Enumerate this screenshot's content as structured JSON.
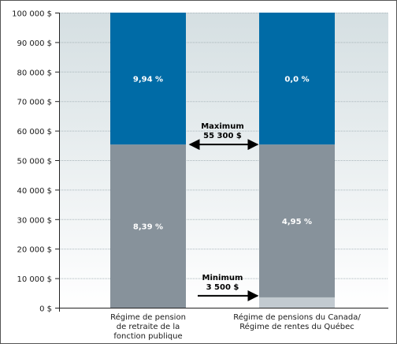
{
  "chart_data": {
    "type": "bar",
    "stacked": true,
    "title": "",
    "xlabel": "",
    "ylabel": "",
    "ylim": [
      0,
      100000
    ],
    "y_ticks": [
      0,
      10000,
      20000,
      30000,
      40000,
      50000,
      60000,
      70000,
      80000,
      90000,
      100000
    ],
    "y_tick_labels": [
      "0 $",
      "10 000 $",
      "20 000 $",
      "30 000 $",
      "40 000 $",
      "50 000 $",
      "60 000 $",
      "70 000 $",
      "80 000 $",
      "90 000 $",
      "100 000 $"
    ],
    "grid": true,
    "categories": [
      [
        "Régime de pension",
        "de retraite de la",
        "fonction publique"
      ],
      [
        "Régime de pensions du Canada/",
        "Régime de rentes du Québec"
      ]
    ],
    "bars": [
      {
        "segments": [
          {
            "from": 0,
            "to": 55300,
            "label": "8,39 %",
            "color": "#87929b"
          },
          {
            "from": 55300,
            "to": 100000,
            "label": "9,94 %",
            "color": "#006ba6"
          }
        ]
      },
      {
        "segments": [
          {
            "from": 0,
            "to": 3500,
            "label": "",
            "color": "#c2cad0"
          },
          {
            "from": 3500,
            "to": 55300,
            "label": "4,95 %",
            "color": "#87929b"
          },
          {
            "from": 55300,
            "to": 100000,
            "label": "0,0 %",
            "color": "#006ba6"
          }
        ]
      }
    ],
    "annotations": [
      {
        "lines": [
          "Maximum",
          "55 300 $"
        ],
        "value": 55300,
        "arrow": "double"
      },
      {
        "lines": [
          "Minimum",
          "3 500 $"
        ],
        "value": 3500,
        "arrow": "right"
      }
    ]
  }
}
